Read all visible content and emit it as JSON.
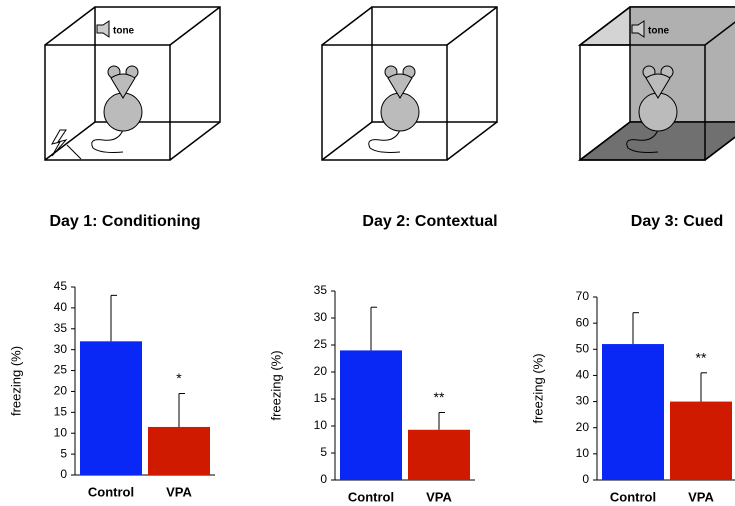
{
  "chart_data": [
    {
      "type": "bar",
      "title": "Day 1: Conditioning",
      "ylabel": "freezing (%)",
      "categories": [
        "Control",
        "VPA"
      ],
      "values": [
        32,
        11.5
      ],
      "errors": [
        11,
        8
      ],
      "colors": [
        "#0a28f5",
        "#d01a00"
      ],
      "annotation": "*",
      "ylim": [
        0,
        45
      ],
      "yticks": [
        0,
        5,
        10,
        15,
        20,
        25,
        30,
        35,
        40,
        45
      ]
    },
    {
      "type": "bar",
      "title": "Day 2: Contextual",
      "ylabel": "freezing (%)",
      "categories": [
        "Control",
        "VPA"
      ],
      "values": [
        24,
        9.3
      ],
      "errors": [
        8,
        3.2
      ],
      "colors": [
        "#0a28f5",
        "#d01a00"
      ],
      "annotation": "**",
      "ylim": [
        0,
        35
      ],
      "yticks": [
        0,
        5,
        10,
        15,
        20,
        25,
        30,
        35
      ]
    },
    {
      "type": "bar",
      "title": "Day 3: Cued",
      "ylabel": "freezing (%)",
      "categories": [
        "Control",
        "VPA"
      ],
      "values": [
        52,
        30
      ],
      "errors": [
        12,
        11
      ],
      "colors": [
        "#0a28f5",
        "#d01a00"
      ],
      "annotation": "**",
      "ylim": [
        0,
        70
      ],
      "yticks": [
        0,
        10,
        20,
        30,
        40,
        50,
        60,
        70
      ]
    }
  ],
  "tone_labels": [
    "tone",
    "tone"
  ]
}
